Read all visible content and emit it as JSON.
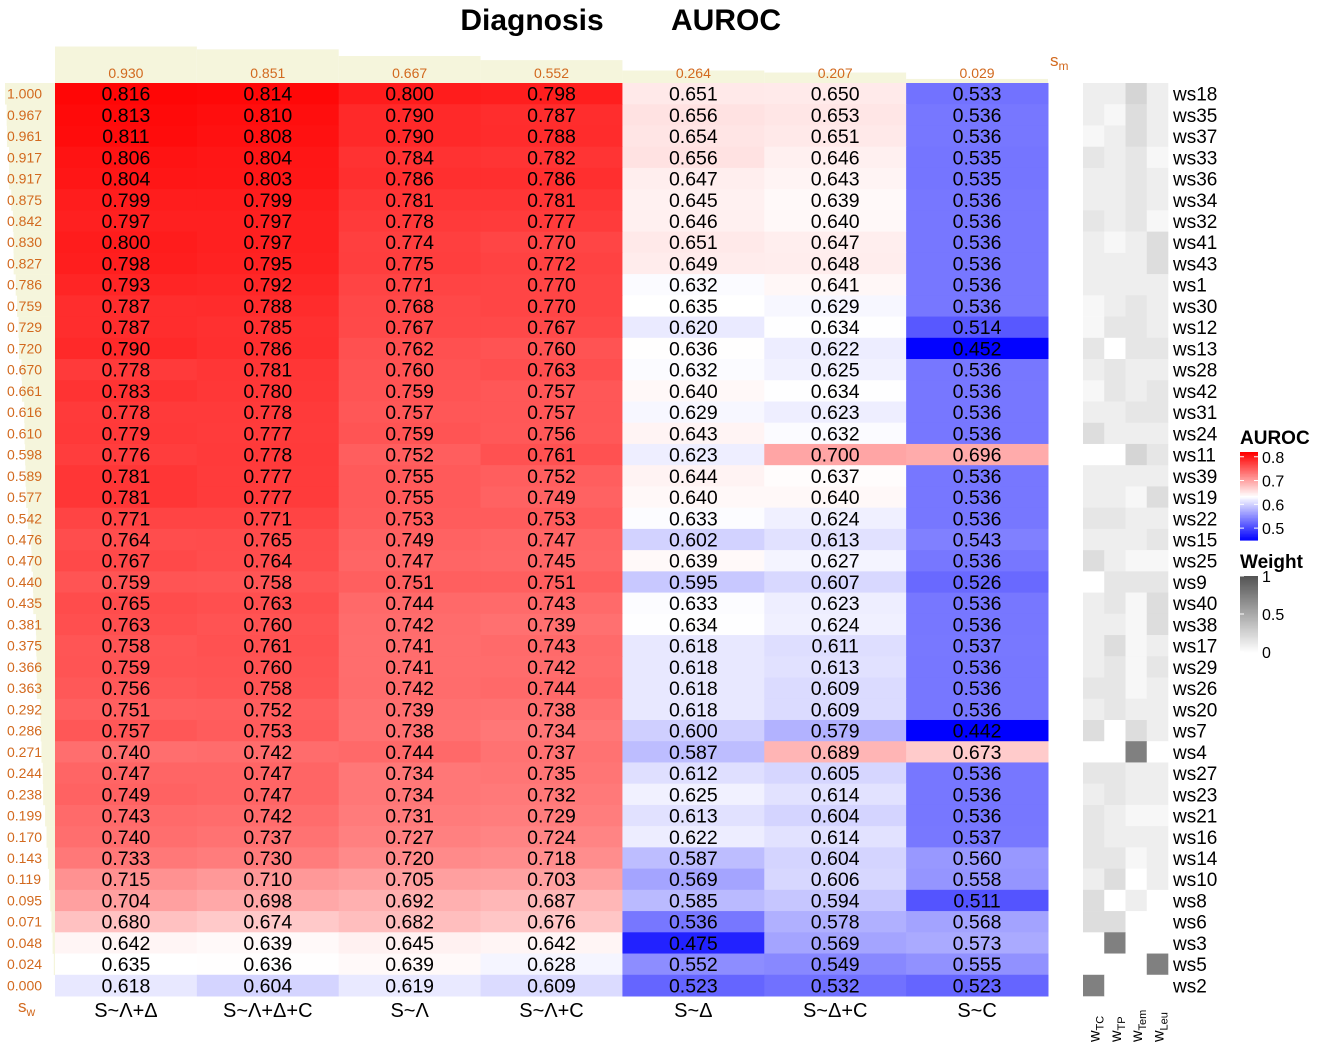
{
  "chart_data": {
    "type": "heatmap",
    "title": "Diagnosis",
    "subtitle": "AUROC",
    "columns": [
      "S~Λ+Δ",
      "S~Λ+Δ+C",
      "S~Λ",
      "S~Λ+C",
      "S~Δ",
      "S~Δ+C",
      "S~C"
    ],
    "sm_label": {
      "base": "s",
      "sub": "m"
    },
    "sw_label": {
      "base": "s",
      "sub": "w"
    },
    "sm_values": [
      "0.930",
      "0.851",
      "0.667",
      "0.552",
      "0.264",
      "0.207",
      "0.029"
    ],
    "rows": [
      "ws18",
      "ws35",
      "ws37",
      "ws33",
      "ws36",
      "ws34",
      "ws32",
      "ws41",
      "ws43",
      "ws1",
      "ws30",
      "ws12",
      "ws13",
      "ws28",
      "ws42",
      "ws31",
      "ws24",
      "ws11",
      "ws39",
      "ws19",
      "ws22",
      "ws15",
      "ws25",
      "ws9",
      "ws40",
      "ws38",
      "ws17",
      "ws29",
      "ws26",
      "ws20",
      "ws7",
      "ws4",
      "ws27",
      "ws23",
      "ws21",
      "ws16",
      "ws14",
      "ws10",
      "ws8",
      "ws6",
      "ws3",
      "ws5",
      "ws2"
    ],
    "sw_values": [
      "1.000",
      "0.967",
      "0.961",
      "0.917",
      "0.917",
      "0.875",
      "0.842",
      "0.830",
      "0.827",
      "0.786",
      "0.759",
      "0.729",
      "0.720",
      "0.670",
      "0.661",
      "0.616",
      "0.610",
      "0.598",
      "0.589",
      "0.577",
      "0.542",
      "0.476",
      "0.470",
      "0.440",
      "0.435",
      "0.381",
      "0.375",
      "0.366",
      "0.363",
      "0.292",
      "0.286",
      "0.271",
      "0.244",
      "0.238",
      "0.199",
      "0.170",
      "0.143",
      "0.119",
      "0.095",
      "0.071",
      "0.048",
      "0.024",
      "0.000"
    ],
    "values": [
      [
        "0.816",
        "0.814",
        "0.800",
        "0.798",
        "0.651",
        "0.650",
        "0.533"
      ],
      [
        "0.813",
        "0.810",
        "0.790",
        "0.787",
        "0.656",
        "0.653",
        "0.536"
      ],
      [
        "0.811",
        "0.808",
        "0.790",
        "0.788",
        "0.654",
        "0.651",
        "0.536"
      ],
      [
        "0.806",
        "0.804",
        "0.784",
        "0.782",
        "0.656",
        "0.646",
        "0.535"
      ],
      [
        "0.804",
        "0.803",
        "0.786",
        "0.786",
        "0.647",
        "0.643",
        "0.535"
      ],
      [
        "0.799",
        "0.799",
        "0.781",
        "0.781",
        "0.645",
        "0.639",
        "0.536"
      ],
      [
        "0.797",
        "0.797",
        "0.778",
        "0.777",
        "0.646",
        "0.640",
        "0.536"
      ],
      [
        "0.800",
        "0.797",
        "0.774",
        "0.770",
        "0.651",
        "0.647",
        "0.536"
      ],
      [
        "0.798",
        "0.795",
        "0.775",
        "0.772",
        "0.649",
        "0.648",
        "0.536"
      ],
      [
        "0.793",
        "0.792",
        "0.771",
        "0.770",
        "0.632",
        "0.641",
        "0.536"
      ],
      [
        "0.787",
        "0.788",
        "0.768",
        "0.770",
        "0.635",
        "0.629",
        "0.536"
      ],
      [
        "0.787",
        "0.785",
        "0.767",
        "0.767",
        "0.620",
        "0.634",
        "0.514"
      ],
      [
        "0.790",
        "0.786",
        "0.762",
        "0.760",
        "0.636",
        "0.622",
        "0.452"
      ],
      [
        "0.778",
        "0.781",
        "0.760",
        "0.763",
        "0.632",
        "0.625",
        "0.536"
      ],
      [
        "0.783",
        "0.780",
        "0.759",
        "0.757",
        "0.640",
        "0.634",
        "0.536"
      ],
      [
        "0.778",
        "0.778",
        "0.757",
        "0.757",
        "0.629",
        "0.623",
        "0.536"
      ],
      [
        "0.779",
        "0.777",
        "0.759",
        "0.756",
        "0.643",
        "0.632",
        "0.536"
      ],
      [
        "0.776",
        "0.778",
        "0.752",
        "0.761",
        "0.623",
        "0.700",
        "0.696"
      ],
      [
        "0.781",
        "0.777",
        "0.755",
        "0.752",
        "0.644",
        "0.637",
        "0.536"
      ],
      [
        "0.781",
        "0.777",
        "0.755",
        "0.749",
        "0.640",
        "0.640",
        "0.536"
      ],
      [
        "0.771",
        "0.771",
        "0.753",
        "0.753",
        "0.633",
        "0.624",
        "0.536"
      ],
      [
        "0.764",
        "0.765",
        "0.749",
        "0.747",
        "0.602",
        "0.613",
        "0.543"
      ],
      [
        "0.767",
        "0.764",
        "0.747",
        "0.745",
        "0.639",
        "0.627",
        "0.536"
      ],
      [
        "0.759",
        "0.758",
        "0.751",
        "0.751",
        "0.595",
        "0.607",
        "0.526"
      ],
      [
        "0.765",
        "0.763",
        "0.744",
        "0.743",
        "0.633",
        "0.623",
        "0.536"
      ],
      [
        "0.763",
        "0.760",
        "0.742",
        "0.739",
        "0.634",
        "0.624",
        "0.536"
      ],
      [
        "0.758",
        "0.761",
        "0.741",
        "0.743",
        "0.618",
        "0.611",
        "0.537"
      ],
      [
        "0.759",
        "0.760",
        "0.741",
        "0.742",
        "0.618",
        "0.613",
        "0.536"
      ],
      [
        "0.756",
        "0.758",
        "0.742",
        "0.744",
        "0.618",
        "0.609",
        "0.536"
      ],
      [
        "0.751",
        "0.752",
        "0.739",
        "0.738",
        "0.618",
        "0.609",
        "0.536"
      ],
      [
        "0.757",
        "0.753",
        "0.738",
        "0.734",
        "0.600",
        "0.579",
        "0.442"
      ],
      [
        "0.740",
        "0.742",
        "0.744",
        "0.737",
        "0.587",
        "0.689",
        "0.673"
      ],
      [
        "0.747",
        "0.747",
        "0.734",
        "0.735",
        "0.612",
        "0.605",
        "0.536"
      ],
      [
        "0.749",
        "0.747",
        "0.734",
        "0.732",
        "0.625",
        "0.614",
        "0.536"
      ],
      [
        "0.743",
        "0.742",
        "0.731",
        "0.729",
        "0.613",
        "0.604",
        "0.536"
      ],
      [
        "0.740",
        "0.737",
        "0.727",
        "0.724",
        "0.622",
        "0.614",
        "0.537"
      ],
      [
        "0.733",
        "0.730",
        "0.720",
        "0.718",
        "0.587",
        "0.604",
        "0.560"
      ],
      [
        "0.715",
        "0.710",
        "0.705",
        "0.703",
        "0.569",
        "0.606",
        "0.558"
      ],
      [
        "0.704",
        "0.698",
        "0.692",
        "0.687",
        "0.585",
        "0.594",
        "0.511"
      ],
      [
        "0.680",
        "0.674",
        "0.682",
        "0.676",
        "0.536",
        "0.578",
        "0.568"
      ],
      [
        "0.642",
        "0.639",
        "0.645",
        "0.642",
        "0.475",
        "0.569",
        "0.573"
      ],
      [
        "0.635",
        "0.636",
        "0.639",
        "0.628",
        "0.552",
        "0.549",
        "0.555"
      ],
      [
        "0.618",
        "0.604",
        "0.619",
        "0.609",
        "0.523",
        "0.532",
        "0.523"
      ]
    ],
    "weight_columns": [
      {
        "base": "w",
        "sub": "TC"
      },
      {
        "base": "w",
        "sub": "TP"
      },
      {
        "base": "w",
        "sub": "Tem"
      },
      {
        "base": "w",
        "sub": "Leu"
      }
    ],
    "weights": [
      [
        0.1,
        0.1,
        0.25,
        0.1
      ],
      [
        0.1,
        0.05,
        0.2,
        0.1
      ],
      [
        0.05,
        0.1,
        0.2,
        0.1
      ],
      [
        0.15,
        0.1,
        0.15,
        0.05
      ],
      [
        0.1,
        0.1,
        0.15,
        0.1
      ],
      [
        0.1,
        0.1,
        0.15,
        0.1
      ],
      [
        0.15,
        0.1,
        0.15,
        0.05
      ],
      [
        0.1,
        0.05,
        0.1,
        0.2
      ],
      [
        0.1,
        0.1,
        0.1,
        0.2
      ],
      [
        0.1,
        0.1,
        0.1,
        0.1
      ],
      [
        0.05,
        0.1,
        0.15,
        0.1
      ],
      [
        0.05,
        0.15,
        0.15,
        0.1
      ],
      [
        0.15,
        0.0,
        0.15,
        0.15
      ],
      [
        0.1,
        0.15,
        0.1,
        0.1
      ],
      [
        0.05,
        0.15,
        0.1,
        0.15
      ],
      [
        0.1,
        0.1,
        0.15,
        0.15
      ],
      [
        0.2,
        0.1,
        0.1,
        0.1
      ],
      [
        0.0,
        0.0,
        0.25,
        0.15
      ],
      [
        0.1,
        0.1,
        0.1,
        0.1
      ],
      [
        0.1,
        0.1,
        0.05,
        0.2
      ],
      [
        0.15,
        0.15,
        0.1,
        0.1
      ],
      [
        0.1,
        0.1,
        0.1,
        0.15
      ],
      [
        0.2,
        0.1,
        0.05,
        0.05
      ],
      [
        0.0,
        0.15,
        0.15,
        0.15
      ],
      [
        0.1,
        0.15,
        0.05,
        0.2
      ],
      [
        0.1,
        0.1,
        0.05,
        0.2
      ],
      [
        0.1,
        0.2,
        0.05,
        0.1
      ],
      [
        0.1,
        0.15,
        0.05,
        0.15
      ],
      [
        0.15,
        0.15,
        0.05,
        0.1
      ],
      [
        0.1,
        0.15,
        0.1,
        0.1
      ],
      [
        0.2,
        0.0,
        0.2,
        0.1
      ],
      [
        0.0,
        0.0,
        0.75,
        0.0
      ],
      [
        0.15,
        0.15,
        0.1,
        0.1
      ],
      [
        0.1,
        0.15,
        0.1,
        0.1
      ],
      [
        0.15,
        0.1,
        0.05,
        0.05
      ],
      [
        0.15,
        0.1,
        0.1,
        0.1
      ],
      [
        0.15,
        0.15,
        0.05,
        0.1
      ],
      [
        0.1,
        0.2,
        0.0,
        0.1
      ],
      [
        0.2,
        0.0,
        0.1,
        0.0
      ],
      [
        0.2,
        0.2,
        0.0,
        0.0
      ],
      [
        0.0,
        0.75,
        0.0,
        0.0
      ],
      [
        0.0,
        0.0,
        0.0,
        0.75
      ],
      [
        0.75,
        0.0,
        0.0,
        0.0
      ]
    ],
    "legend_auroc": {
      "title": "AUROC",
      "ticks": [
        "0.8",
        "0.7",
        "0.6",
        "0.5"
      ],
      "range": [
        0.45,
        0.82
      ]
    },
    "legend_weight": {
      "title": "Weight",
      "ticks": [
        "1",
        "0.5",
        "0"
      ],
      "range": [
        0,
        1
      ]
    },
    "colors": {
      "low": "#0000ff",
      "mid": "#ffffff",
      "high": "#ff0000",
      "marginal_bar": "#f5f5dc",
      "label_orange": "#d2691e"
    }
  }
}
